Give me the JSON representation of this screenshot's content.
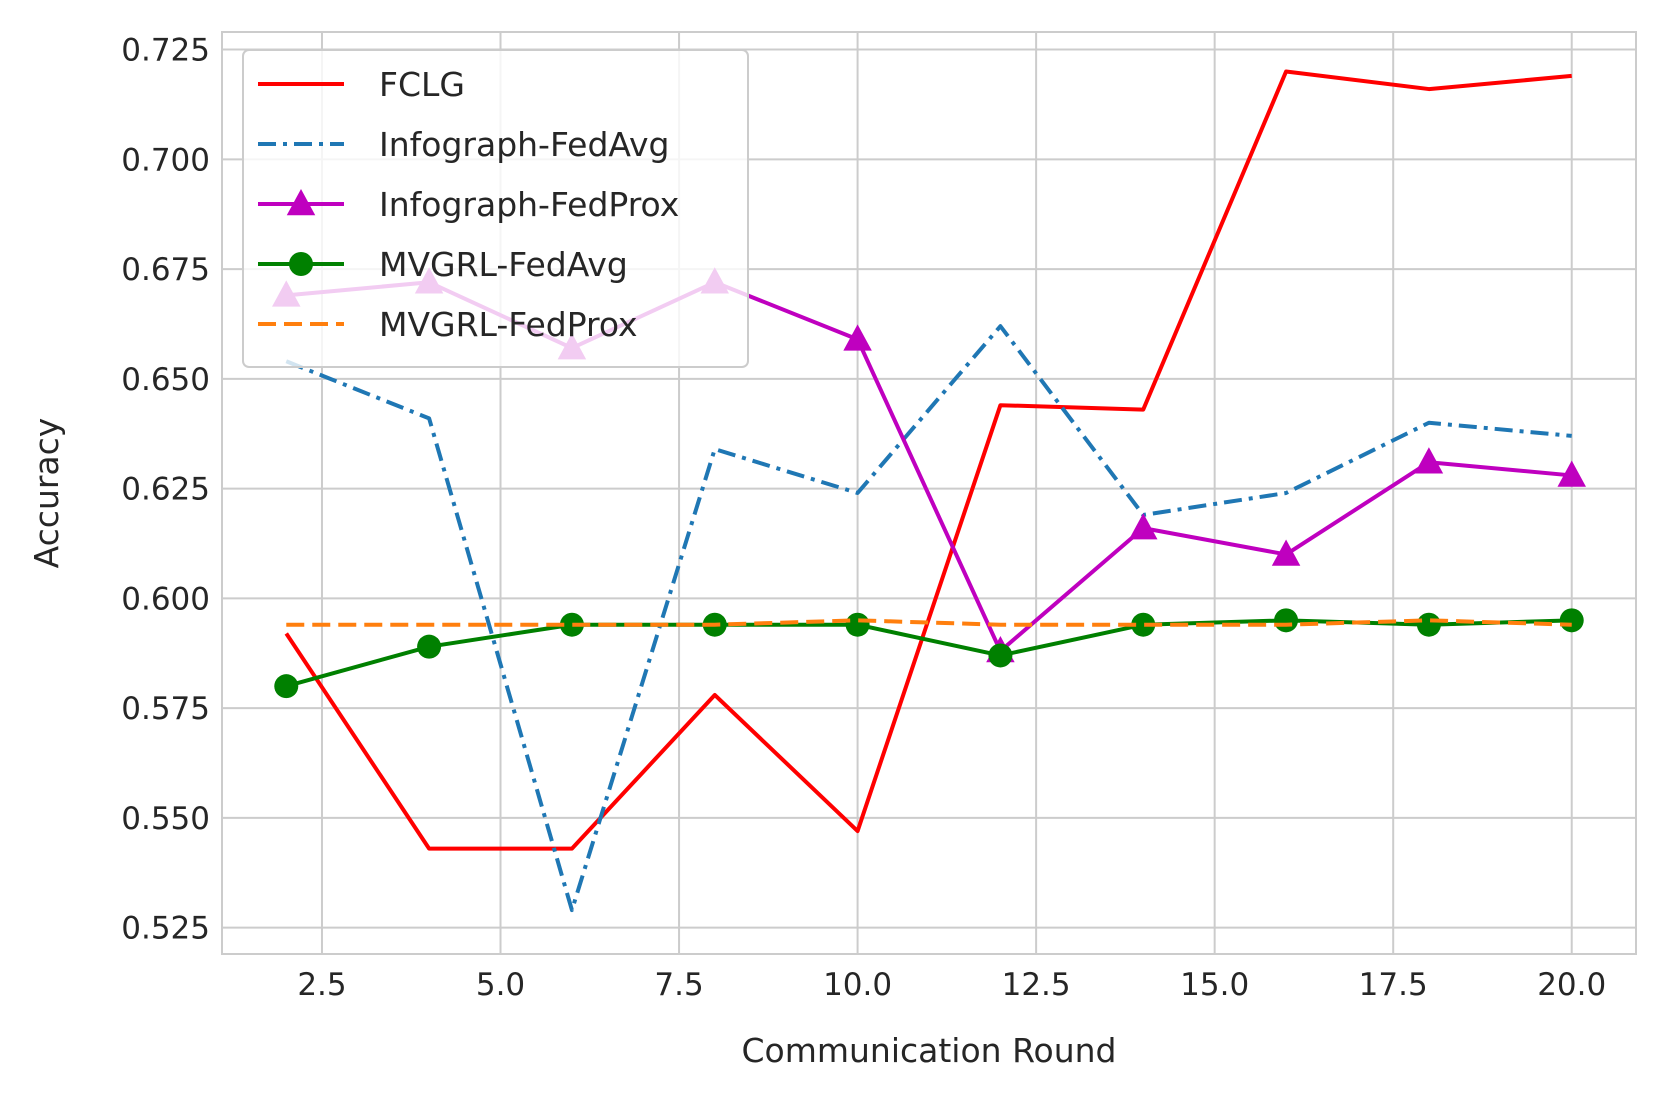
{
  "chart_data": {
    "type": "line",
    "title": "",
    "xlabel": "Communication Round",
    "ylabel": "Accuracy",
    "xlim": [
      1.1,
      20.9
    ],
    "ylim": [
      0.519,
      0.729
    ],
    "xticks": [
      2.5,
      5.0,
      7.5,
      10.0,
      12.5,
      15.0,
      17.5,
      20.0
    ],
    "xtick_labels": [
      "2.5",
      "5.0",
      "7.5",
      "10.0",
      "12.5",
      "15.0",
      "17.5",
      "20.0"
    ],
    "yticks": [
      0.525,
      0.55,
      0.575,
      0.6,
      0.625,
      0.65,
      0.675,
      0.7,
      0.725
    ],
    "ytick_labels": [
      "0.525",
      "0.550",
      "0.575",
      "0.600",
      "0.625",
      "0.650",
      "0.675",
      "0.700",
      "0.725"
    ],
    "grid": true,
    "legend_position": "top-left",
    "x": [
      2,
      4,
      6,
      8,
      10,
      12,
      14,
      16,
      18,
      20
    ],
    "series": [
      {
        "name": "FCLG",
        "color": "#ff0000",
        "style": "solid",
        "marker": "none",
        "values": [
          0.592,
          0.543,
          0.543,
          0.578,
          0.547,
          0.644,
          0.643,
          0.72,
          0.716,
          0.719
        ]
      },
      {
        "name": "Infograph-FedAvg",
        "color": "#1f77b4",
        "style": "dashdot",
        "marker": "none",
        "values": [
          0.654,
          0.641,
          0.529,
          0.634,
          0.624,
          0.662,
          0.619,
          0.624,
          0.64,
          0.637
        ]
      },
      {
        "name": "Infograph-FedProx",
        "color": "#bf00bf",
        "style": "solid",
        "marker": "triangle",
        "values": [
          0.669,
          0.672,
          0.657,
          0.672,
          0.659,
          0.588,
          0.616,
          0.61,
          0.631,
          0.628
        ]
      },
      {
        "name": "MVGRL-FedAvg",
        "color": "#008000",
        "style": "solid",
        "marker": "circle",
        "values": [
          0.58,
          0.589,
          0.594,
          0.594,
          0.594,
          0.587,
          0.594,
          0.595,
          0.594,
          0.595
        ]
      },
      {
        "name": "MVGRL-FedProx",
        "color": "#ff7f0e",
        "style": "dashed",
        "marker": "none",
        "values": [
          0.594,
          0.594,
          0.594,
          0.594,
          0.595,
          0.594,
          0.594,
          0.594,
          0.595,
          0.594
        ]
      }
    ]
  }
}
